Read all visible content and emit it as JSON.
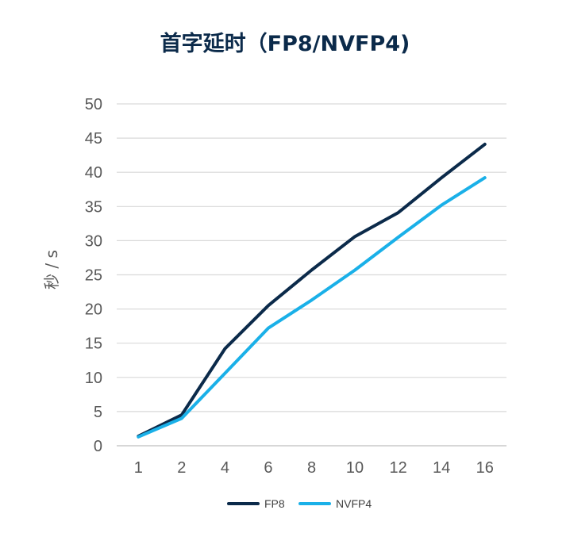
{
  "chart_data": {
    "type": "line",
    "title": "首字延时（FP8/NVFP4)",
    "xlabel": "",
    "ylabel": "秒 / s",
    "categories": [
      "1",
      "2",
      "4",
      "6",
      "8",
      "10",
      "12",
      "14",
      "16"
    ],
    "ylim": [
      0,
      50
    ],
    "yticks": [
      "0",
      "5",
      "10",
      "15",
      "20",
      "25",
      "30",
      "35",
      "40",
      "45",
      "50"
    ],
    "grid": true,
    "legend_position": "bottom",
    "series": [
      {
        "name": "FP8",
        "color": "#0b2a4a",
        "values": [
          1.4,
          4.5,
          14.2,
          20.5,
          25.7,
          30.6,
          34.1,
          39.2,
          44.1
        ]
      },
      {
        "name": "NVFP4",
        "color": "#1ab0e8",
        "values": [
          1.3,
          4.0,
          10.6,
          17.2,
          21.3,
          25.7,
          30.5,
          35.2,
          39.2
        ]
      }
    ]
  }
}
